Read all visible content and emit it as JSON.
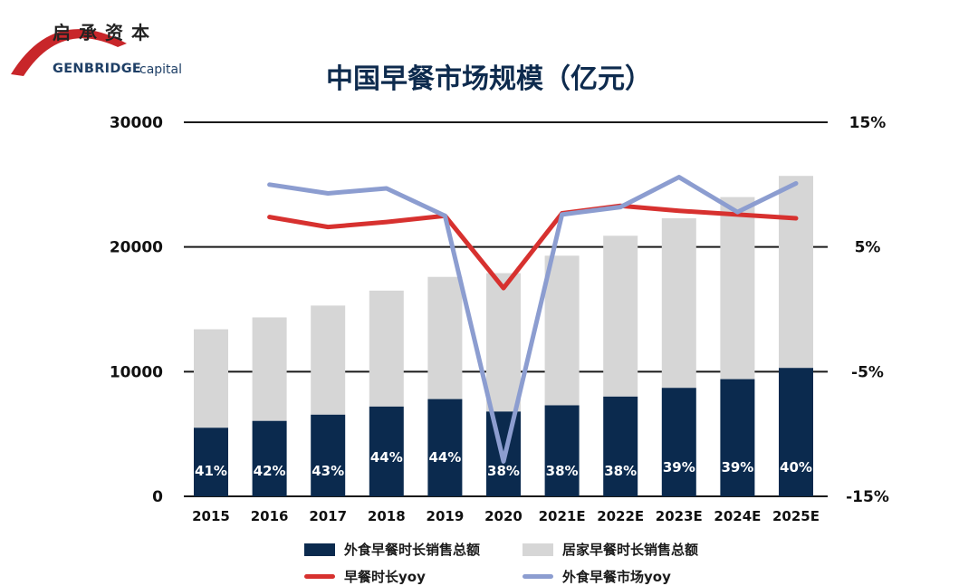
{
  "logo": {
    "name_cn": "启承资本",
    "name_en": "GENBRIDGE",
    "name_en_suffix": "capital",
    "color": "#c8262a"
  },
  "legend": {
    "items": [
      {
        "label": "外食早餐时长销售总额",
        "color": "#0b2a4e",
        "kind": "bar"
      },
      {
        "label": "居家早餐时长销售总额",
        "color": "#d6d6d6",
        "kind": "bar"
      },
      {
        "label": "早餐时长yoy",
        "color": "#d7312f",
        "kind": "line"
      },
      {
        "label": "外食早餐市场yoy",
        "color": "#8c9dd0",
        "kind": "line"
      }
    ]
  },
  "chart_data": {
    "type": "bar",
    "title": "中国早餐市场规模（亿元）",
    "categories": [
      "2015",
      "2016",
      "2017",
      "2018",
      "2019",
      "2020",
      "2021E",
      "2022E",
      "2023E",
      "2024E",
      "2025E"
    ],
    "ylim": [
      0,
      30000
    ],
    "yticks": [
      "0",
      "10000",
      "20000",
      "30000"
    ],
    "y2lim": [
      -15,
      15
    ],
    "y2ticks": [
      "-15%",
      "-5%",
      "5%",
      "15%"
    ],
    "grid": true,
    "legend_position": "bottom",
    "series": [
      {
        "name": "外食早餐时长销售总额",
        "type": "bar",
        "stack": "total",
        "color": "#0b2a4e",
        "values": [
          5500,
          6050,
          6550,
          7200,
          7800,
          6800,
          7300,
          8000,
          8700,
          9400,
          10300
        ]
      },
      {
        "name": "居家早餐时长销售总额",
        "type": "bar",
        "stack": "total",
        "color": "#d6d6d6",
        "values": [
          7900,
          8300,
          8750,
          9300,
          9800,
          11100,
          12000,
          12900,
          13600,
          14600,
          15400
        ]
      },
      {
        "name": "早餐时长yoy",
        "type": "line",
        "axis": "right",
        "color": "#d7312f",
        "values": [
          null,
          7.4,
          6.6,
          7.0,
          7.5,
          1.7,
          7.7,
          8.3,
          7.9,
          7.6,
          7.3
        ]
      },
      {
        "name": "外食早餐市场yoy",
        "type": "line",
        "axis": "right",
        "color": "#8c9dd0",
        "values": [
          null,
          10.0,
          9.3,
          9.7,
          7.5,
          -12.2,
          7.6,
          8.2,
          10.6,
          7.8,
          10.1
        ]
      }
    ],
    "bar_labels": [
      "41%",
      "42%",
      "43%",
      "44%",
      "44%",
      "38%",
      "38%",
      "38%",
      "39%",
      "39%",
      "40%"
    ]
  }
}
